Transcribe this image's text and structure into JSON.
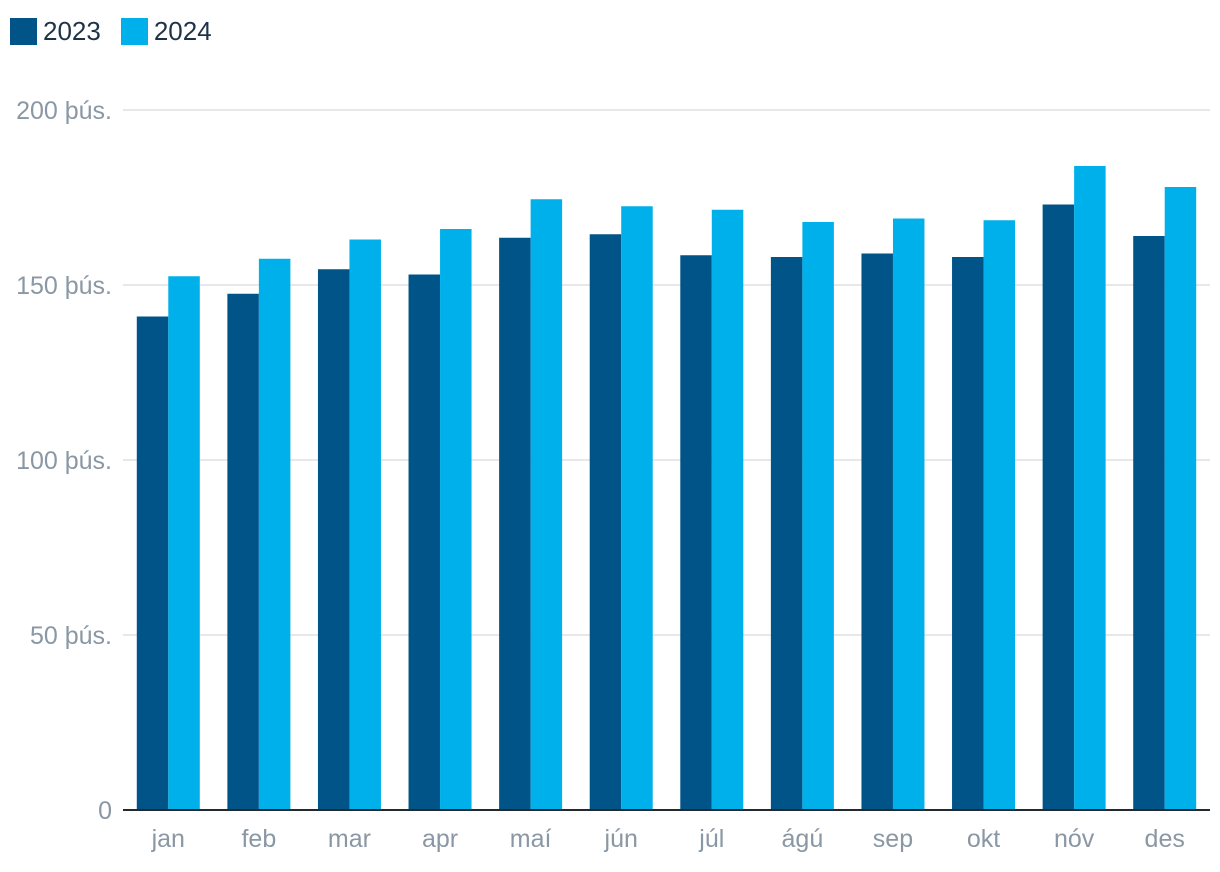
{
  "chart_data": {
    "type": "bar",
    "categories": [
      "jan",
      "feb",
      "mar",
      "apr",
      "maí",
      "jún",
      "júl",
      "ágú",
      "sep",
      "okt",
      "nóv",
      "des"
    ],
    "series": [
      {
        "name": "2023",
        "color": "#005488",
        "values": [
          141000,
          147500,
          154500,
          153000,
          163500,
          164500,
          158500,
          158000,
          159000,
          158000,
          173000,
          164000
        ]
      },
      {
        "name": "2024",
        "color": "#00b0ea",
        "values": [
          152500,
          157500,
          163000,
          166000,
          174500,
          172500,
          171500,
          168000,
          169000,
          168500,
          184000,
          178000
        ]
      }
    ],
    "y_ticks": [
      {
        "value": 0,
        "label": "0"
      },
      {
        "value": 50000,
        "label": "50 þús."
      },
      {
        "value": 100000,
        "label": "100 þús."
      },
      {
        "value": 150000,
        "label": "150 þús."
      },
      {
        "value": 200000,
        "label": "200 þús."
      }
    ],
    "ylim": [
      0,
      200000
    ],
    "grid": true,
    "legend_position": "top-left"
  }
}
